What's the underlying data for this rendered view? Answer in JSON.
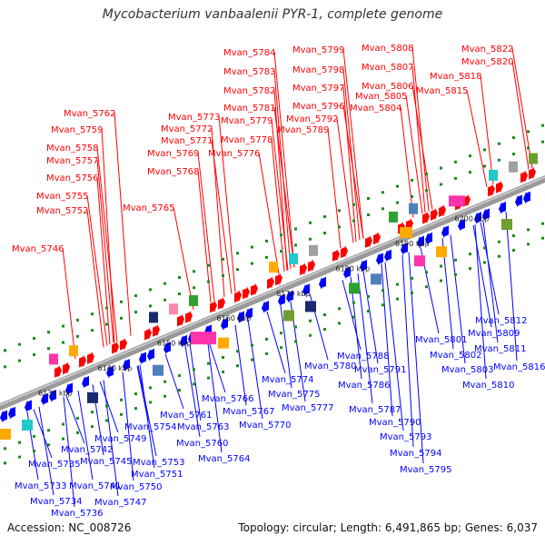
{
  "title": "Mycobacterium vanbaalenii PYR-1, complete genome",
  "footer": {
    "accession": "Accession: NC_008726",
    "topology": "Topology: circular; Length: 6,491,865 bp; Genes: 6,037"
  },
  "colors": {
    "forward_gene": "#ff0000",
    "reverse_gene": "#0000ff",
    "backbone": "#888888",
    "tick": "#1a8a1a"
  },
  "scale_labels": [
    "6130 kbp",
    "6140 kbp",
    "6150 kbp",
    "6160 kbp",
    "6170 kbp",
    "6180 kbp",
    "6190 kbp",
    "6200 kbp"
  ],
  "top_labels": [
    "Mvan_5746",
    "Mvan_5752",
    "Mvan_5755",
    "Mvan_5756",
    "Mvan_5757",
    "Mvan_5758",
    "Mvan_5759",
    "Mvan_5762",
    "Mvan_5765",
    "Mvan_5768",
    "Mvan_5769",
    "Mvan_5771",
    "Mvan_5772",
    "Mvan_5773",
    "Mvan_5776",
    "Mvan_5778",
    "Mvan_5779",
    "Mvan_5781",
    "Mvan_5782",
    "Mvan_5783",
    "Mvan_5784",
    "Mvan_5789",
    "Mvan_5792",
    "Mvan_5796",
    "Mvan_5797",
    "Mvan_5798",
    "Mvan_5799",
    "Mvan_5804",
    "Mvan_5805",
    "Mvan_5806",
    "Mvan_5807",
    "Mvan_5808",
    "Mvan_5815",
    "Mvan_5818",
    "Mvan_5820",
    "Mvan_5822"
  ],
  "bottom_labels": [
    "Mvan_5733",
    "Mvan_5734",
    "Mvan_5735",
    "Mvan_5736",
    "Mvan_5741",
    "Mvan_5742",
    "Mvan_5745",
    "Mvan_5747",
    "Mvan_5749",
    "Mvan_5750",
    "Mvan_5751",
    "Mvan_5753",
    "Mvan_5754",
    "Mvan_5760",
    "Mvan_5761",
    "Mvan_5763",
    "Mvan_5764",
    "Mvan_5766",
    "Mvan_5767",
    "Mvan_5770",
    "Mvan_5774",
    "Mvan_5775",
    "Mvan_5777",
    "Mvan_5780",
    "Mvan_5786",
    "Mvan_5787",
    "Mvan_5788",
    "Mvan_5790",
    "Mvan_5791",
    "Mvan_5793",
    "Mvan_5794",
    "Mvan_5795",
    "Mvan_5801",
    "Mvan_5802",
    "Mvan_5803",
    "Mvan_5809",
    "Mvan_5810",
    "Mvan_5811",
    "Mvan_5812",
    "Mvan_5816"
  ]
}
